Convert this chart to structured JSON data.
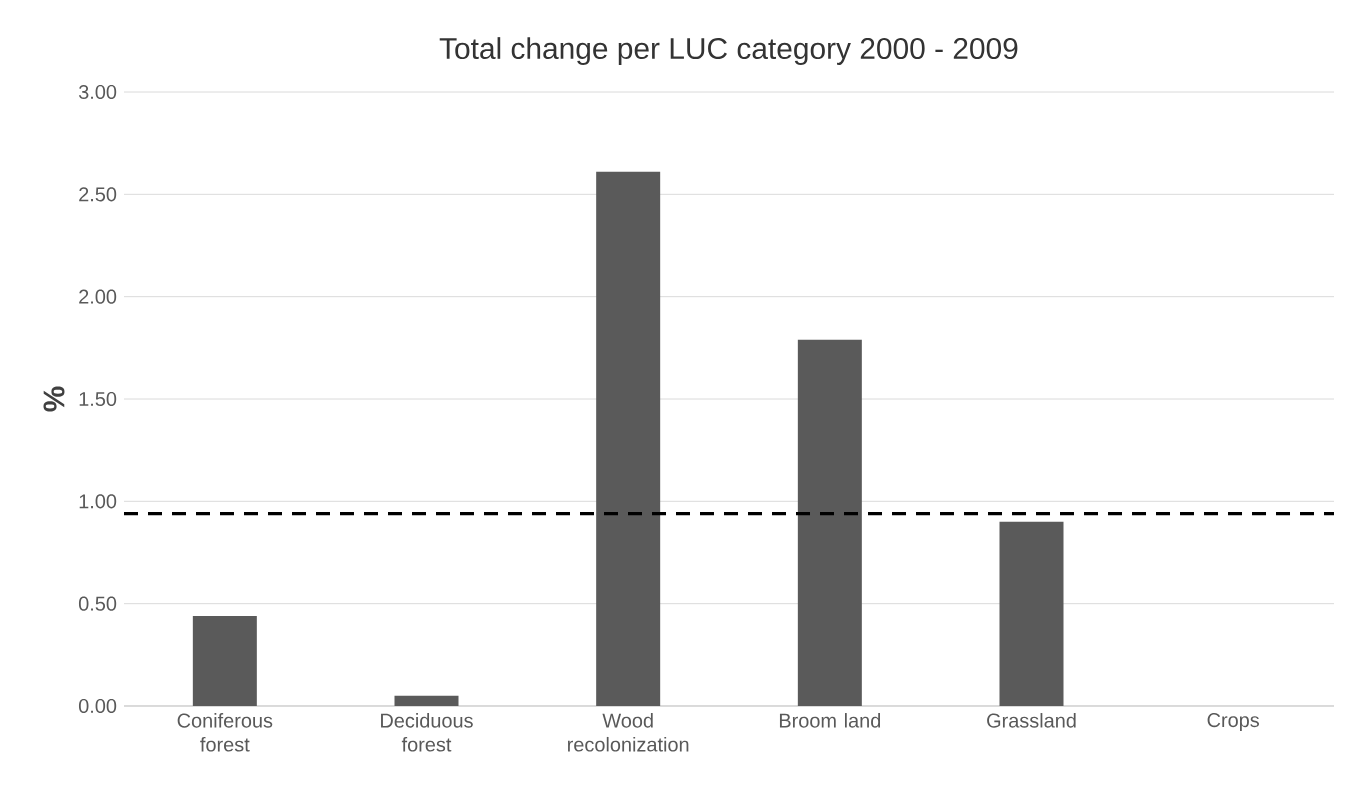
{
  "chart_data": {
    "type": "bar",
    "title": "Total change per LUC category 2000 - 2009",
    "ylabel": "%",
    "categories": [
      "Coniferous forest",
      "Deciduous forest",
      "Wood recolonization",
      "Broom land",
      "Grassland",
      "Crops"
    ],
    "values": [
      0.44,
      0.05,
      2.61,
      1.79,
      0.9,
      0
    ],
    "color": "#5a5a5a",
    "ylim": [
      0,
      3
    ],
    "yticks": [
      {
        "value": 0,
        "label": "0.00"
      },
      {
        "value": 0.5,
        "label": "0.50"
      },
      {
        "value": 1,
        "label": "1.00"
      },
      {
        "value": 1.5,
        "label": "1.50"
      },
      {
        "value": 2,
        "label": "2.00"
      },
      {
        "value": 2.5,
        "label": "2.50"
      },
      {
        "value": 3,
        "label": "3.00"
      }
    ],
    "grid": "y",
    "ref_lines": [
      {
        "axis": "y",
        "value": 0.94,
        "line_style": "dashed",
        "color": "#000000"
      }
    ]
  }
}
